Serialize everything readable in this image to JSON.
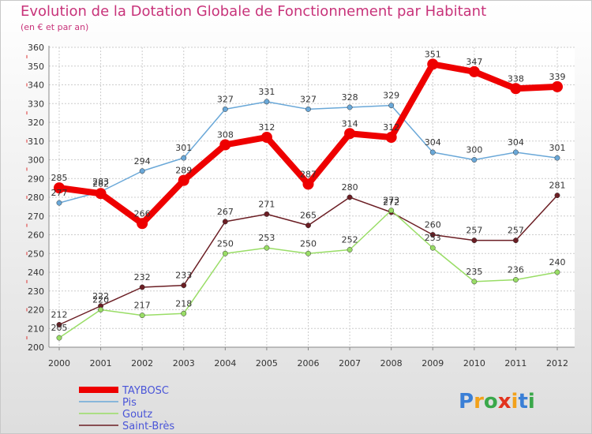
{
  "header": {
    "title": "Evolution de la Dotation Globale de Fonctionnement par Habitant",
    "subtitle": "(en € et par an)"
  },
  "brand": {
    "text": "Proxiti"
  },
  "chart_data": {
    "type": "line",
    "title": "Evolution de la Dotation Globale de Fonctionnement par Habitant",
    "subtitle": "(en € et par an)",
    "xlabel": "",
    "ylabel": "",
    "ylim": [
      200,
      360
    ],
    "ytick_step": 10,
    "grid": true,
    "legend_position": "bottom-left",
    "x": [
      "2000",
      "2001",
      "2002",
      "2003",
      "2004",
      "2005",
      "2006",
      "2007",
      "2008",
      "2009",
      "2010",
      "2011",
      "2012"
    ],
    "series": [
      {
        "name": "Saint-Brès",
        "color": "#6b1e24",
        "values": [
          212,
          222,
          232,
          233,
          267,
          271,
          265,
          280,
          272,
          260,
          257,
          257,
          281
        ]
      },
      {
        "name": "Goutz",
        "color": "#99dd66",
        "values": [
          205,
          220,
          217,
          218,
          250,
          253,
          250,
          252,
          273,
          253,
          235,
          236,
          240
        ]
      },
      {
        "name": "Pis",
        "color": "#6aa8d8",
        "values": [
          277,
          283,
          294,
          301,
          327,
          331,
          327,
          328,
          329,
          304,
          300,
          304,
          301
        ]
      },
      {
        "name": "TAYBOSC",
        "color": "#ee0000",
        "values": [
          285,
          282,
          266,
          289,
          308,
          312,
          287,
          314,
          312,
          351,
          347,
          338,
          339
        ]
      }
    ]
  }
}
